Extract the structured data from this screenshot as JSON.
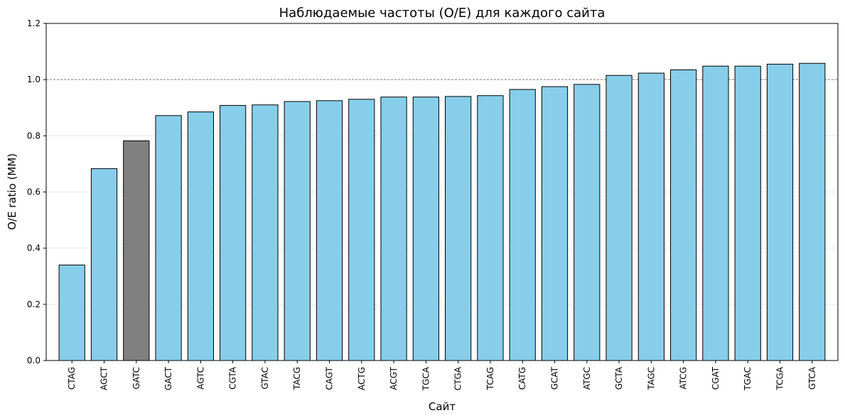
{
  "chart_data": {
    "type": "bar",
    "title": "Наблюдаемые частоты (O/E) для каждого сайта",
    "xlabel": "Сайт",
    "ylabel": "O/E ratio (MM)",
    "ylim": [
      0,
      1.2
    ],
    "yticks": [
      "0.0",
      "0.2",
      "0.4",
      "0.6",
      "0.8",
      "1.0",
      "1.2"
    ],
    "grid": "horizontal",
    "reference_line": 1.0,
    "categories": [
      "CTAG",
      "AGCT",
      "GATC",
      "GACT",
      "AGTC",
      "CGTA",
      "GTAC",
      "TACG",
      "CAGT",
      "ACTG",
      "ACGT",
      "TGCA",
      "CTGA",
      "TCAG",
      "CATG",
      "GCAT",
      "ATGC",
      "GCTA",
      "TAGC",
      "ATCG",
      "CGAT",
      "TGAC",
      "TCGA",
      "GTCA"
    ],
    "values": [
      0.34,
      0.683,
      0.782,
      0.872,
      0.885,
      0.908,
      0.91,
      0.922,
      0.925,
      0.93,
      0.938,
      0.938,
      0.94,
      0.943,
      0.965,
      0.975,
      0.983,
      1.015,
      1.023,
      1.035,
      1.048,
      1.048,
      1.055,
      1.058
    ],
    "bar_color": "#87CEEB",
    "highlight_color": "#808080",
    "highlight_category": "GATC",
    "edge_color": "#000000"
  }
}
